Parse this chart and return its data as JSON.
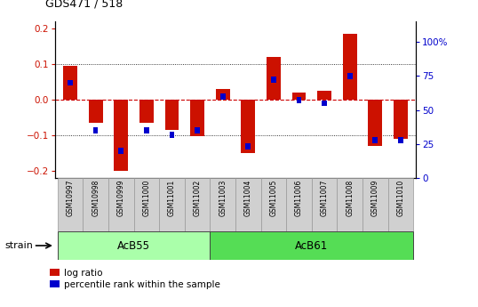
{
  "title": "GDS471 / 518",
  "samples": [
    "GSM10997",
    "GSM10998",
    "GSM10999",
    "GSM11000",
    "GSM11001",
    "GSM11002",
    "GSM11003",
    "GSM11004",
    "GSM11005",
    "GSM11006",
    "GSM11007",
    "GSM11008",
    "GSM11009",
    "GSM11010"
  ],
  "log_ratio": [
    0.095,
    -0.065,
    -0.2,
    -0.065,
    -0.085,
    -0.102,
    0.03,
    -0.15,
    0.12,
    0.02,
    0.025,
    0.185,
    -0.13,
    -0.11
  ],
  "percentile": [
    70,
    35,
    20,
    35,
    32,
    35,
    60,
    23,
    72,
    57,
    55,
    75,
    28,
    28
  ],
  "groups": [
    {
      "label": "AcB55",
      "start": 0,
      "end": 5,
      "color": "#aaffaa"
    },
    {
      "label": "AcB61",
      "start": 6,
      "end": 13,
      "color": "#55dd55"
    }
  ],
  "ylim": [
    -0.22,
    0.22
  ],
  "y2lim": [
    0,
    115
  ],
  "y2ticks": [
    0,
    25,
    50,
    75,
    100
  ],
  "y2ticklabels": [
    "0",
    "25",
    "50",
    "75",
    "100%"
  ],
  "yticks": [
    -0.2,
    -0.1,
    0.0,
    0.1,
    0.2
  ],
  "bar_color_red": "#cc1100",
  "bar_color_blue": "#0000cc",
  "hline_color": "#cc0000",
  "bar_width": 0.55,
  "blue_bar_width": 0.2,
  "background_plot": "#ffffff",
  "strain_label": "strain",
  "legend_red": "log ratio",
  "legend_blue": "percentile rank within the sample"
}
